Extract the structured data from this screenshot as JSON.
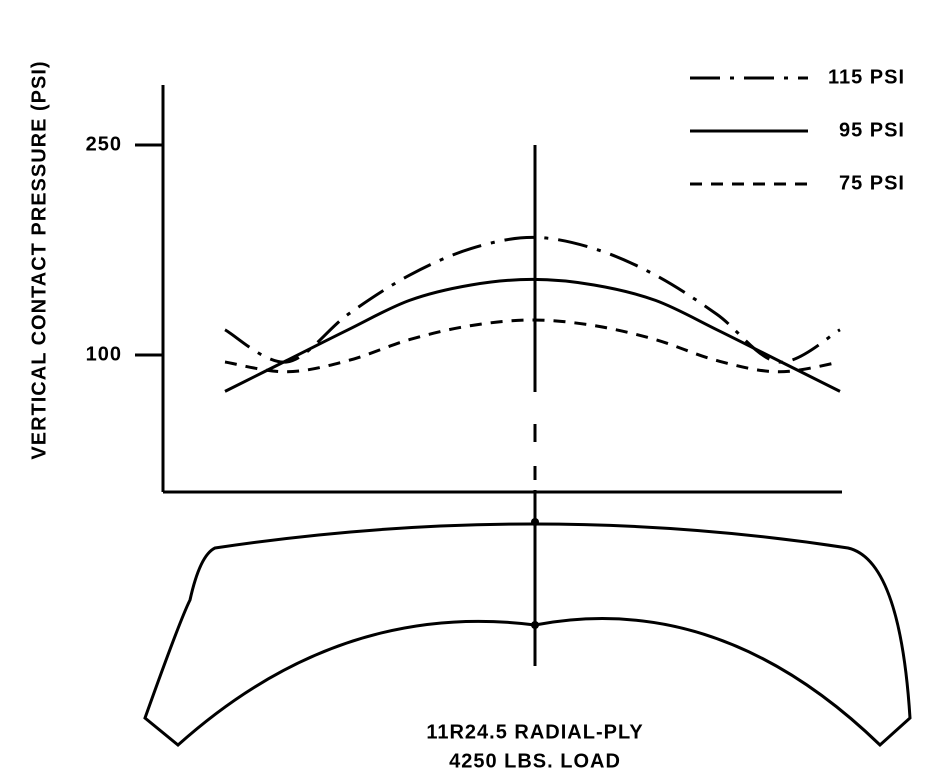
{
  "chart_data": {
    "type": "line",
    "ylabel": "VERTICAL CONTACT PRESSURE (PSI)",
    "annotations": [
      "11R24.5 RADIAL-PLY",
      "4250 LBS. LOAD"
    ],
    "categories": [
      null,
      null,
      null,
      null,
      null,
      null,
      null,
      null,
      null,
      null,
      null
    ],
    "series": [
      {
        "name": "115 PSI",
        "color": "#000000",
        "dash": "dashdot",
        "values": [
          118,
          95,
          129,
          157,
          176,
          184,
          176,
          157,
          129,
          95,
          118
        ]
      },
      {
        "name": "95 PSI",
        "color": "#000000",
        "dash": "solid",
        "values": [
          74,
          96,
          118,
          139,
          150,
          154,
          150,
          139,
          118,
          96,
          74
        ]
      },
      {
        "name": "75 PSI",
        "color": "#000000",
        "dash": "dashed",
        "values": [
          95,
          88,
          96,
          111,
          121,
          125,
          121,
          111,
          96,
          88,
          95
        ]
      }
    ],
    "ylim": [
      0,
      290
    ],
    "yticks": [
      100,
      250
    ],
    "legend": "top-right"
  }
}
